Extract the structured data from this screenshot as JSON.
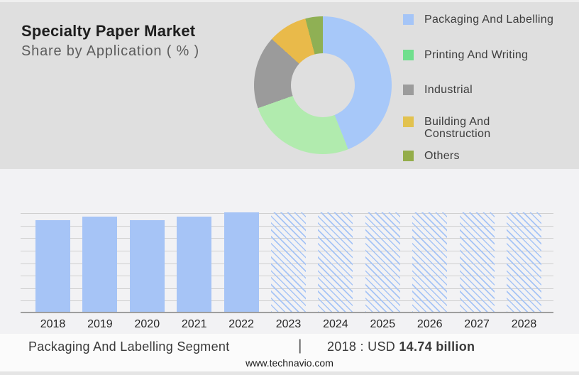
{
  "header": {
    "title": "Specialty Paper Market",
    "subtitle": "Share by Application ( % )"
  },
  "legend": {
    "items": [
      {
        "name": "packaging-and-labelling",
        "label": "Packaging And Labelling",
        "color": "#a5c5f7"
      },
      {
        "name": "printing-and-writing",
        "label": "Printing And Writing",
        "color": "#70df8d"
      },
      {
        "name": "industrial",
        "label": "Industrial",
        "color": "#9c9c9c"
      },
      {
        "name": "building-and-construction",
        "label": "Building And\nConstruction",
        "color": "#e2c24f"
      },
      {
        "name": "others",
        "label": "Others",
        "color": "#94ad4a"
      }
    ]
  },
  "chart_data": [
    {
      "type": "pie",
      "donut": true,
      "title": "Specialty Paper Market — Share by Application ( % )",
      "labels": [
        "Packaging And Labelling",
        "Printing And Writing",
        "Industrial",
        "Building And Construction",
        "Others"
      ],
      "values_pct": [
        44.0,
        25.6,
        17.1,
        9.2,
        4.1
      ],
      "colors": [
        "#a7c8f9",
        "#b1ebae",
        "#9b9b9b",
        "#e9ba4a",
        "#8fb054"
      ],
      "start_angle_deg": 0,
      "legend_position": "right"
    },
    {
      "type": "bar",
      "categories": [
        "2018",
        "2019",
        "2020",
        "2021",
        "2022",
        "2023",
        "2024",
        "2025",
        "2026",
        "2027",
        "2028"
      ],
      "values_relative": [
        0.922,
        0.957,
        0.922,
        0.957,
        1.0,
        1.0,
        1.0,
        1.0,
        1.0,
        1.0,
        1.0
      ],
      "solid_years": [
        "2018",
        "2019",
        "2020",
        "2021",
        "2022"
      ],
      "hatched_forecast_years": [
        "2023",
        "2024",
        "2025",
        "2026",
        "2027",
        "2028"
      ],
      "bar_color": "#a6c4f6",
      "known_value": {
        "year": "2018",
        "label": "USD 14.74 billion"
      },
      "grid": true,
      "gridline_count": 9,
      "xlabel": "",
      "ylabel": ""
    }
  ],
  "footer": {
    "segment": "Packaging And Labelling Segment",
    "separator": "|",
    "value_prefix": "2018 : USD ",
    "value_bold": "14.74 billion",
    "website": "www.technavio.com"
  },
  "colors": {
    "top_panel_bg": "#dfdfdf",
    "chart_panel_bg": "#f2f2f4",
    "footer_bg": "#fbfbfb",
    "gridline": "#cfcfcf",
    "axis": "#9e9e9e"
  }
}
